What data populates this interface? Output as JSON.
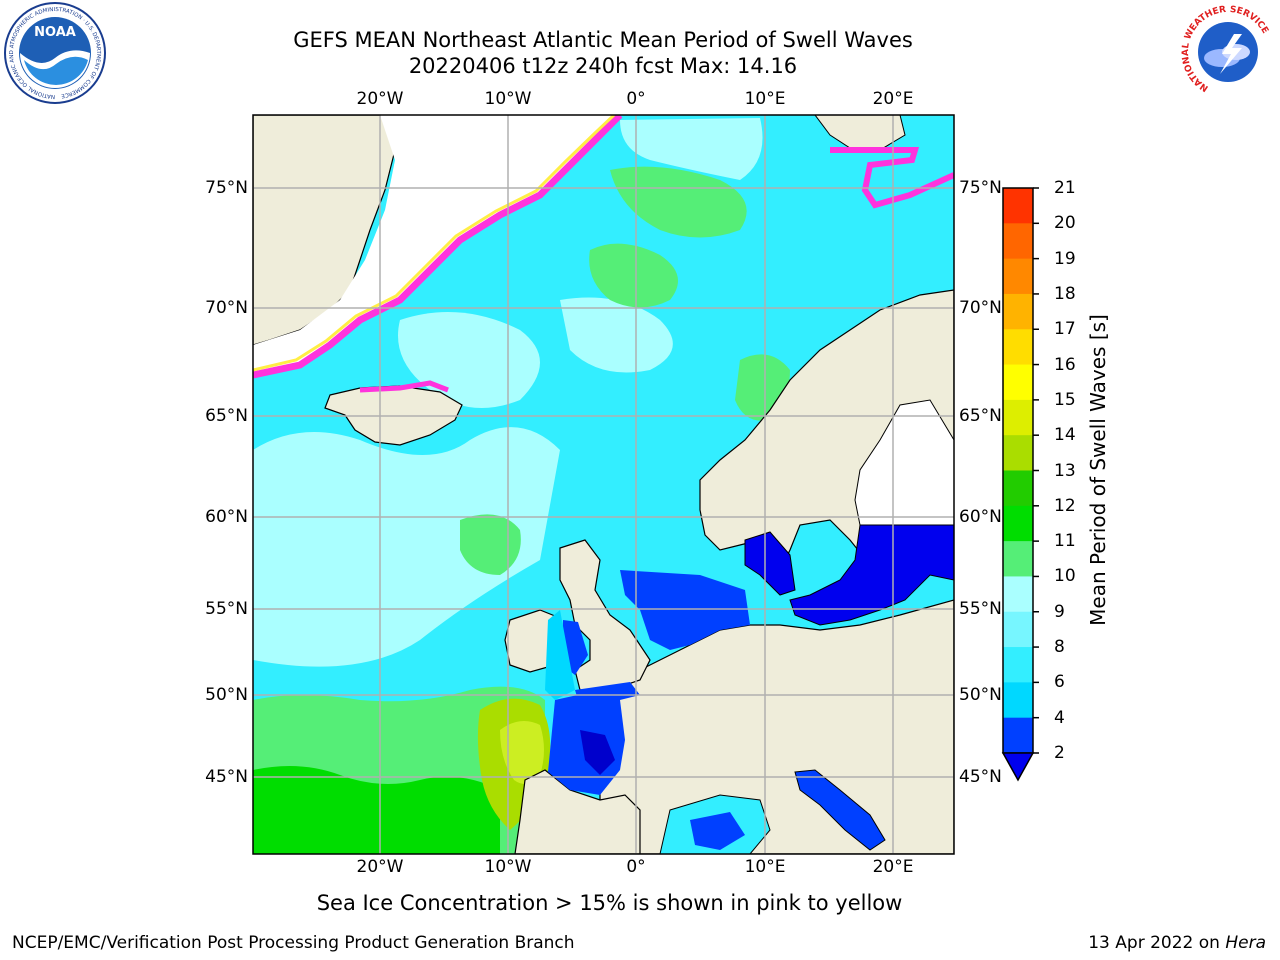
{
  "title": {
    "line1": "GEFS MEAN Northeast Atlantic Mean Period of Swell Waves",
    "line2": "20220406 t12z 240h fcst   Max: 14.16"
  },
  "map": {
    "lat_labels": [
      "75°N",
      "70°N",
      "65°N",
      "60°N",
      "55°N",
      "50°N",
      "45°N"
    ],
    "lon_labels": [
      "20°W",
      "10°W",
      "0°",
      "10°E",
      "20°E"
    ]
  },
  "colorbar": {
    "label": "Mean Period of Swell Waves [s]",
    "ticks": [
      "21",
      "20",
      "19",
      "18",
      "17",
      "16",
      "15",
      "14",
      "13",
      "12",
      "11",
      "10",
      "9",
      "8",
      "6",
      "4",
      "2"
    ]
  },
  "colors": {
    "land": "#efedda",
    "grid": "#b0b0b0",
    "ice_pink": "#ff33dd",
    "ice_yellow": "#ffee44",
    "levels": [
      "#0040ff",
      "#00d8ff",
      "#33eeff",
      "#77f6ff",
      "#aaffff",
      "#55ee77",
      "#00dd00",
      "#22cc00",
      "#aadd00",
      "#ddee00",
      "#ffff00",
      "#ffdd00",
      "#ffb300",
      "#ff8800",
      "#ff6600",
      "#ff3300",
      "#ff0000"
    ]
  },
  "note": "Sea Ice Concentration > 15% is shown in pink to yellow",
  "footer": {
    "left": "NCEP/EMC/Verification Post Processing Product Generation Branch",
    "right_date": "13 Apr 2022 on ",
    "right_host": "Hera"
  },
  "logos": {
    "noaa_text": "NOAA",
    "noaa_ring": "NATIONAL OCEANIC AND ATMOSPHERIC ADMINISTRATION · U.S. DEPARTMENT OF COMMERCE",
    "nws_ring": "NATIONAL WEATHER SERVICE"
  }
}
